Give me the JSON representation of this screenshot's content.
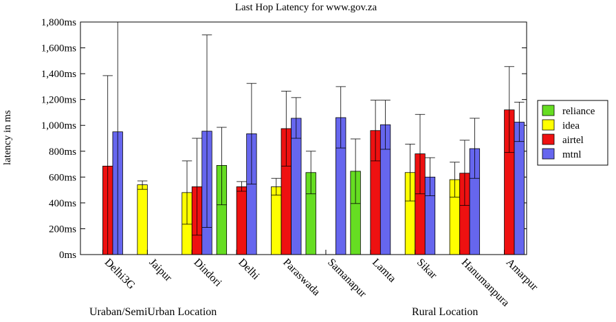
{
  "chart_data": {
    "type": "bar",
    "title": "Last Hop Latency for www.gov.za",
    "xlabel": "",
    "ylabel": "latency in ms",
    "ylim": [
      0,
      1800
    ],
    "yticks": [
      0,
      200,
      400,
      600,
      800,
      1000,
      1200,
      1400,
      1600,
      1800
    ],
    "ytick_labels": [
      "0ms",
      "200ms",
      "400ms",
      "600ms",
      "800ms",
      "1,000ms",
      "1,200ms",
      "1,400ms",
      "1,600ms",
      "1,800ms"
    ],
    "categories": [
      "Delhi3G",
      "Jaipur",
      "Dindori",
      "Delhi",
      "Paraswada",
      "Samanapur",
      "Lamta",
      "Sikar",
      "Hanumanpura",
      "Amarpur"
    ],
    "series": [
      {
        "name": "reliance",
        "color": "#66dd22",
        "values": [
          null,
          null,
          null,
          690,
          null,
          635,
          645,
          null,
          null,
          null
        ],
        "err_low": [
          null,
          null,
          null,
          385,
          null,
          470,
          395,
          null,
          null,
          null
        ],
        "err_high": [
          null,
          null,
          null,
          985,
          null,
          800,
          895,
          null,
          null,
          null
        ]
      },
      {
        "name": "idea",
        "color": "#ffff00",
        "values": [
          null,
          540,
          480,
          null,
          525,
          null,
          null,
          635,
          580,
          null
        ],
        "err_low": [
          null,
          505,
          235,
          null,
          460,
          null,
          null,
          415,
          445,
          null
        ],
        "err_high": [
          null,
          570,
          725,
          null,
          590,
          null,
          null,
          855,
          715,
          null
        ]
      },
      {
        "name": "airtel",
        "color": "#ee1111",
        "values": [
          685,
          null,
          525,
          525,
          975,
          null,
          960,
          780,
          630,
          1120
        ],
        "err_low": [
          0,
          null,
          150,
          490,
          685,
          null,
          725,
          470,
          380,
          790
        ],
        "err_high": [
          1385,
          null,
          900,
          565,
          1265,
          null,
          1195,
          1085,
          885,
          1455
        ]
      },
      {
        "name": "mtnl",
        "color": "#6666ee",
        "values": [
          950,
          null,
          955,
          935,
          1055,
          1060,
          1005,
          600,
          820,
          1025
        ],
        "err_low": [
          0,
          null,
          210,
          545,
          900,
          825,
          815,
          455,
          590,
          875
        ],
        "err_high": [
          1900,
          null,
          1700,
          1325,
          1215,
          1300,
          1195,
          750,
          1055,
          1180
        ]
      }
    ],
    "group_labels": [
      {
        "text": "Uraban/SemiUrban Location"
      },
      {
        "text": "Rural Location"
      }
    ],
    "legend_position": "right",
    "grid": false
  }
}
